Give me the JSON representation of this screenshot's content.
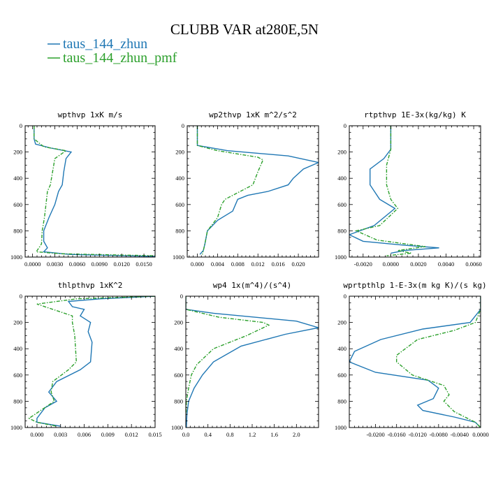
{
  "figure": {
    "title": "CLUBB VAR at280E,5N",
    "colors": {
      "blue": "#1f77b4",
      "green": "#2ca02c"
    },
    "legend": [
      {
        "label": "taus_144_zhun",
        "color": "#1f77b4",
        "style": "solid"
      },
      {
        "label": "taus_144_zhun_pmf",
        "color": "#2ca02c",
        "style": "dashdot"
      }
    ]
  },
  "chart_data": [
    {
      "type": "line",
      "title": "wpthvp  1xK m/s",
      "xlim": [
        -0.001,
        0.0165
      ],
      "ylim": [
        1000,
        0
      ],
      "xticks": [
        0.0,
        0.003,
        0.006,
        0.009,
        0.012,
        0.015
      ],
      "xtick_labels": [
        "0.0000",
        "0.0030",
        "0.0060",
        "0.0090",
        "0.0120",
        "0.0150"
      ],
      "yticks": [
        0,
        200,
        400,
        600,
        800,
        1000
      ],
      "ytick_labels": [
        "0",
        "200",
        "400",
        "600",
        "800",
        "1000"
      ],
      "series": [
        {
          "name": "taus_144_zhun",
          "color": "#1f77b4",
          "style": "solid",
          "points": [
            [
              0.0002,
              0
            ],
            [
              0.0002,
              100
            ],
            [
              0.0004,
              140
            ],
            [
              0.0025,
              170
            ],
            [
              0.0052,
              200
            ],
            [
              0.0045,
              250
            ],
            [
              0.0042,
              350
            ],
            [
              0.004,
              450
            ],
            [
              0.0035,
              500
            ],
            [
              0.003,
              600
            ],
            [
              0.0022,
              700
            ],
            [
              0.0015,
              800
            ],
            [
              0.0015,
              880
            ],
            [
              0.002,
              930
            ],
            [
              0.0015,
              960
            ],
            [
              0.005,
              980
            ],
            [
              0.0165,
              995
            ]
          ]
        },
        {
          "name": "taus_144_zhun_pmf",
          "color": "#2ca02c",
          "style": "dashdot",
          "points": [
            [
              0.0002,
              0
            ],
            [
              0.0002,
              100
            ],
            [
              0.0015,
              160
            ],
            [
              0.0045,
              190
            ],
            [
              0.003,
              250
            ],
            [
              0.0027,
              350
            ],
            [
              0.0024,
              450
            ],
            [
              0.002,
              500
            ],
            [
              0.0018,
              600
            ],
            [
              0.0016,
              700
            ],
            [
              0.0013,
              800
            ],
            [
              0.0012,
              900
            ],
            [
              0.0005,
              960
            ],
            [
              0.004,
              975
            ],
            [
              0.0165,
              990
            ]
          ]
        }
      ]
    },
    {
      "type": "line",
      "title": "wp2thvp  1xK m^2/s^2",
      "xlim": [
        -0.002,
        0.024
      ],
      "ylim": [
        1000,
        0
      ],
      "xticks": [
        0.0,
        0.004,
        0.008,
        0.012,
        0.016,
        0.02
      ],
      "xtick_labels": [
        "0.000",
        "0.004",
        "0.008",
        "0.012",
        "0.016",
        "0.020"
      ],
      "yticks": [
        0,
        200,
        400,
        600,
        800,
        1000
      ],
      "ytick_labels": [
        "0",
        "200",
        "400",
        "600",
        "800",
        "1000"
      ],
      "series": [
        {
          "name": "taus_144_zhun",
          "color": "#1f77b4",
          "style": "solid",
          "points": [
            [
              0.0,
              0
            ],
            [
              0.0,
              150
            ],
            [
              0.006,
              190
            ],
            [
              0.018,
              230
            ],
            [
              0.024,
              280
            ],
            [
              0.021,
              330
            ],
            [
              0.019,
              400
            ],
            [
              0.018,
              450
            ],
            [
              0.014,
              500
            ],
            [
              0.01,
              530
            ],
            [
              0.008,
              560
            ],
            [
              0.007,
              650
            ],
            [
              0.004,
              720
            ],
            [
              0.002,
              800
            ],
            [
              0.0015,
              900
            ],
            [
              0.0012,
              950
            ],
            [
              0.0005,
              980
            ]
          ]
        },
        {
          "name": "taus_144_zhun_pmf",
          "color": "#2ca02c",
          "style": "dashdot",
          "points": [
            [
              0.0,
              0
            ],
            [
              0.0,
              150
            ],
            [
              0.004,
              190
            ],
            [
              0.012,
              240
            ],
            [
              0.013,
              260
            ],
            [
              0.012,
              350
            ],
            [
              0.011,
              450
            ],
            [
              0.007,
              530
            ],
            [
              0.0055,
              560
            ],
            [
              0.0048,
              600
            ],
            [
              0.004,
              700
            ],
            [
              0.002,
              800
            ],
            [
              0.0015,
              900
            ],
            [
              0.001,
              980
            ]
          ]
        }
      ]
    },
    {
      "type": "line",
      "title": "rtpthvp  1E-3x(kg/kg) K",
      "xlim": [
        -0.003,
        0.0065
      ],
      "ylim": [
        1000,
        0
      ],
      "xticks": [
        -0.002,
        0.0,
        0.002,
        0.004,
        0.006
      ],
      "xtick_labels": [
        "-0.0020",
        "0.0000",
        "0.0020",
        "0.0040",
        "0.0060"
      ],
      "yticks": [
        0,
        200,
        400,
        600,
        800,
        1000
      ],
      "ytick_labels": [
        "0",
        "200",
        "400",
        "600",
        "800",
        "1000"
      ],
      "series": [
        {
          "name": "taus_144_zhun",
          "color": "#1f77b4",
          "style": "solid",
          "points": [
            [
              0.0,
              0
            ],
            [
              0.0,
              180
            ],
            [
              -0.0005,
              250
            ],
            [
              -0.0015,
              330
            ],
            [
              -0.0015,
              450
            ],
            [
              -0.0008,
              560
            ],
            [
              0.0003,
              630
            ],
            [
              -0.0012,
              760
            ],
            [
              -0.003,
              830
            ],
            [
              -0.002,
              880
            ],
            [
              0.001,
              910
            ],
            [
              0.0035,
              930
            ],
            [
              0.001,
              950
            ],
            [
              0.0,
              970
            ]
          ]
        },
        {
          "name": "taus_144_zhun_pmf",
          "color": "#2ca02c",
          "style": "dashdot",
          "points": [
            [
              0.0,
              0
            ],
            [
              0.0,
              180
            ],
            [
              -0.0003,
              300
            ],
            [
              -0.0003,
              450
            ],
            [
              0.0,
              560
            ],
            [
              0.0005,
              630
            ],
            [
              -0.0008,
              760
            ],
            [
              -0.0025,
              800
            ],
            [
              -0.001,
              870
            ],
            [
              0.0025,
              920
            ],
            [
              0.0005,
              950
            ],
            [
              0.0015,
              970
            ],
            [
              -0.0003,
              990
            ]
          ]
        }
      ]
    },
    {
      "type": "line",
      "title": "thlpthvp  1xK^2",
      "xlim": [
        -0.0015,
        0.015
      ],
      "ylim": [
        1000,
        0
      ],
      "xticks": [
        0.0,
        0.003,
        0.006,
        0.009,
        0.012,
        0.015
      ],
      "xtick_labels": [
        "0.000",
        "0.003",
        "0.006",
        "0.009",
        "0.012",
        "0.015"
      ],
      "yticks": [
        0,
        200,
        400,
        600,
        800,
        1000
      ],
      "ytick_labels": [
        "0",
        "200",
        "400",
        "600",
        "800",
        "1000"
      ],
      "series": [
        {
          "name": "taus_144_zhun",
          "color": "#1f77b4",
          "style": "solid",
          "points": [
            [
              0.015,
              0
            ],
            [
              0.008,
              20
            ],
            [
              0.004,
              40
            ],
            [
              0.0045,
              80
            ],
            [
              0.006,
              100
            ],
            [
              0.0055,
              150
            ],
            [
              0.0068,
              200
            ],
            [
              0.0065,
              270
            ],
            [
              0.007,
              350
            ],
            [
              0.0068,
              500
            ],
            [
              0.0055,
              560
            ],
            [
              0.0025,
              650
            ],
            [
              0.0015,
              730
            ],
            [
              0.0025,
              800
            ],
            [
              0.001,
              850
            ],
            [
              0.0,
              930
            ],
            [
              0.0,
              960
            ],
            [
              0.003,
              990
            ]
          ]
        },
        {
          "name": "taus_144_zhun_pmf",
          "color": "#2ca02c",
          "style": "dashdot",
          "points": [
            [
              0.015,
              0
            ],
            [
              0.005,
              20
            ],
            [
              0.0,
              60
            ],
            [
              0.002,
              100
            ],
            [
              0.0045,
              150
            ],
            [
              0.0045,
              200
            ],
            [
              0.0048,
              300
            ],
            [
              0.005,
              500
            ],
            [
              0.004,
              560
            ],
            [
              0.002,
              650
            ],
            [
              0.0018,
              730
            ],
            [
              0.0022,
              800
            ],
            [
              -0.001,
              930
            ],
            [
              0.0,
              960
            ],
            [
              0.0025,
              990
            ]
          ]
        }
      ]
    },
    {
      "type": "line",
      "title": "wp4  1x(m^4)/(s^4)",
      "xlim": [
        0.0,
        2.4
      ],
      "ylim": [
        1000,
        0
      ],
      "xticks": [
        0.0,
        0.4,
        0.8,
        1.2,
        1.6,
        2.0
      ],
      "xtick_labels": [
        "0.0",
        "0.4",
        "0.8",
        "1.2",
        "1.6",
        "2.0"
      ],
      "yticks": [
        0,
        200,
        400,
        600,
        800,
        1000
      ],
      "ytick_labels": [
        "0",
        "200",
        "400",
        "600",
        "800",
        "1000"
      ],
      "series": [
        {
          "name": "taus_144_zhun",
          "color": "#1f77b4",
          "style": "solid",
          "points": [
            [
              0.0,
              0
            ],
            [
              0.0,
              100
            ],
            [
              0.5,
              130
            ],
            [
              2.0,
              190
            ],
            [
              2.4,
              240
            ],
            [
              1.8,
              290
            ],
            [
              1.0,
              380
            ],
            [
              0.5,
              500
            ],
            [
              0.3,
              600
            ],
            [
              0.15,
              700
            ],
            [
              0.05,
              800
            ],
            [
              0.02,
              900
            ],
            [
              0.01,
              1000
            ]
          ]
        },
        {
          "name": "taus_144_zhun_pmf",
          "color": "#2ca02c",
          "style": "dashdot",
          "points": [
            [
              0.0,
              0
            ],
            [
              0.0,
              100
            ],
            [
              0.6,
              160
            ],
            [
              1.4,
              200
            ],
            [
              1.5,
              220
            ],
            [
              1.1,
              300
            ],
            [
              0.5,
              400
            ],
            [
              0.2,
              520
            ],
            [
              0.1,
              600
            ],
            [
              0.05,
              700
            ],
            [
              0.01,
              800
            ],
            [
              0.005,
              900
            ]
          ]
        }
      ]
    },
    {
      "type": "line",
      "title": "wprtpthlp  1-E-3x(m kg K)/(s kg)",
      "xlim": [
        -0.025,
        0.0
      ],
      "ylim": [
        1000,
        0
      ],
      "xticks": [
        -0.02,
        -0.016,
        -0.012,
        -0.008,
        -0.004,
        0.0
      ],
      "xtick_labels": [
        "-0.0200",
        "-0.0160",
        "-0.0120",
        "-0.0080",
        "-0.0040",
        "0.0000"
      ],
      "yticks": [
        0,
        200,
        400,
        600,
        800,
        1000
      ],
      "ytick_labels": [
        "0",
        "200",
        "400",
        "600",
        "800",
        "1000"
      ],
      "series": [
        {
          "name": "taus_144_zhun",
          "color": "#1f77b4",
          "style": "solid",
          "points": [
            [
              0.0,
              0
            ],
            [
              0.0,
              100
            ],
            [
              -0.002,
              200
            ],
            [
              -0.011,
              250
            ],
            [
              -0.019,
              330
            ],
            [
              -0.024,
              420
            ],
            [
              -0.025,
              500
            ],
            [
              -0.02,
              580
            ],
            [
              -0.01,
              640
            ],
            [
              -0.008,
              700
            ],
            [
              -0.009,
              780
            ],
            [
              -0.012,
              830
            ],
            [
              -0.011,
              870
            ],
            [
              -0.005,
              920
            ],
            [
              -0.001,
              960
            ],
            [
              0.0,
              1000
            ]
          ]
        },
        {
          "name": "taus_144_zhun_pmf",
          "color": "#2ca02c",
          "style": "dashdot",
          "points": [
            [
              0.0,
              0
            ],
            [
              0.0,
              100
            ],
            [
              -0.001,
              200
            ],
            [
              -0.005,
              260
            ],
            [
              -0.012,
              330
            ],
            [
              -0.016,
              450
            ],
            [
              -0.016,
              500
            ],
            [
              -0.013,
              600
            ],
            [
              -0.007,
              680
            ],
            [
              -0.006,
              750
            ],
            [
              -0.007,
              800
            ],
            [
              -0.005,
              880
            ],
            [
              -0.001,
              960
            ],
            [
              0.0,
              1000
            ]
          ]
        }
      ]
    }
  ]
}
